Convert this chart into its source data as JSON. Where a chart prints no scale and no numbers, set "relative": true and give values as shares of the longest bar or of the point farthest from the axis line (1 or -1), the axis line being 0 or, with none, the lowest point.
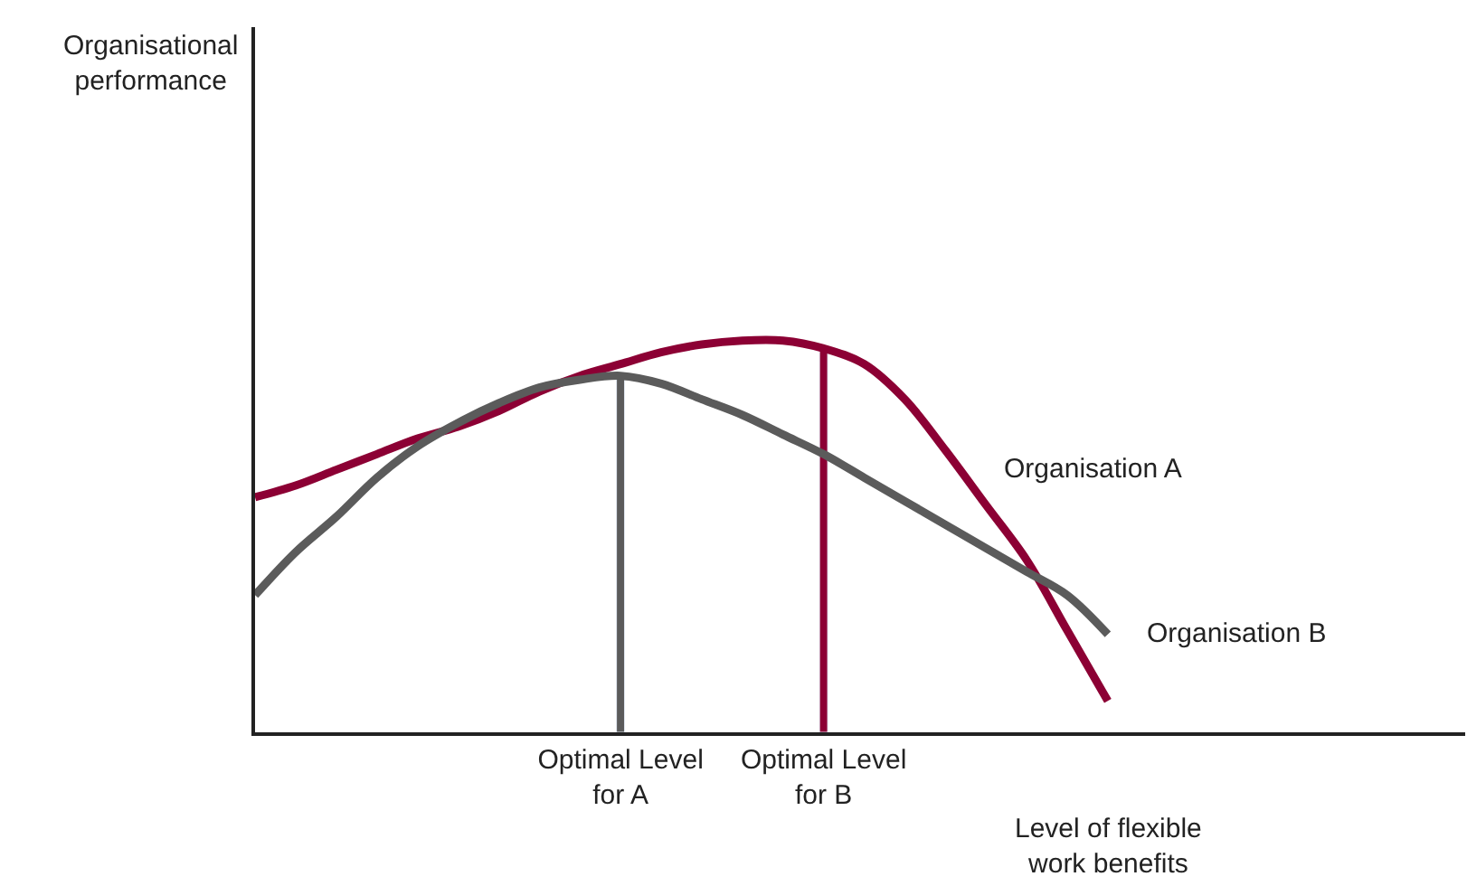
{
  "chart_data": {
    "type": "line",
    "relative": true,
    "legend": false,
    "marker": "none",
    "line_style": "solid",
    "xlabel": "Level of flexible\nwork benefits",
    "annotations": [
      "Organisational\nperformance"
    ],
    "categories": [
      null,
      null,
      null,
      null,
      null,
      null,
      null,
      null,
      null,
      "Optimal Level\nfor A",
      null,
      null,
      null,
      null,
      "Optimal Level\nfor B",
      null,
      null,
      null,
      null,
      null,
      null,
      null,
      null,
      null,
      null,
      null,
      null,
      null,
      null,
      null
    ],
    "series": [
      {
        "name": "Organisation A",
        "color": "#8c0034",
        "values": [
          0.6,
          0.63,
          0.67,
          0.71,
          0.75,
          0.78,
          0.82,
          0.87,
          0.91,
          0.94,
          0.97,
          0.99,
          1.0,
          1.0,
          0.98,
          0.94,
          0.85,
          0.72,
          0.58,
          0.44,
          0.26,
          0.08,
          null,
          null,
          null,
          null,
          null,
          null,
          null,
          null
        ]
      },
      {
        "name": "Organisation B",
        "color": "#5b5b5b",
        "values": [
          0.35,
          0.46,
          0.55,
          0.65,
          0.73,
          0.79,
          0.84,
          0.88,
          0.9,
          0.91,
          0.89,
          0.85,
          0.81,
          0.76,
          0.71,
          0.65,
          0.59,
          0.53,
          0.47,
          0.41,
          0.35,
          0.25,
          null,
          null,
          null,
          null,
          null,
          null,
          null,
          null
        ]
      },
      {
        "type": "bar",
        "color": "#5b5b5b",
        "values": [
          null,
          null,
          null,
          null,
          null,
          null,
          null,
          null,
          null,
          0.91,
          null,
          null,
          null,
          null,
          null,
          null,
          null,
          null,
          null,
          null,
          null,
          null,
          null,
          null,
          null,
          null,
          null,
          null,
          null,
          null
        ]
      },
      {
        "type": "bar",
        "color": "#8c0034",
        "values": [
          null,
          null,
          null,
          null,
          null,
          null,
          null,
          null,
          null,
          null,
          null,
          null,
          null,
          null,
          0.98,
          null,
          null,
          null,
          null,
          null,
          null,
          null,
          null,
          null,
          null,
          null,
          null,
          null,
          null,
          null
        ]
      }
    ]
  }
}
